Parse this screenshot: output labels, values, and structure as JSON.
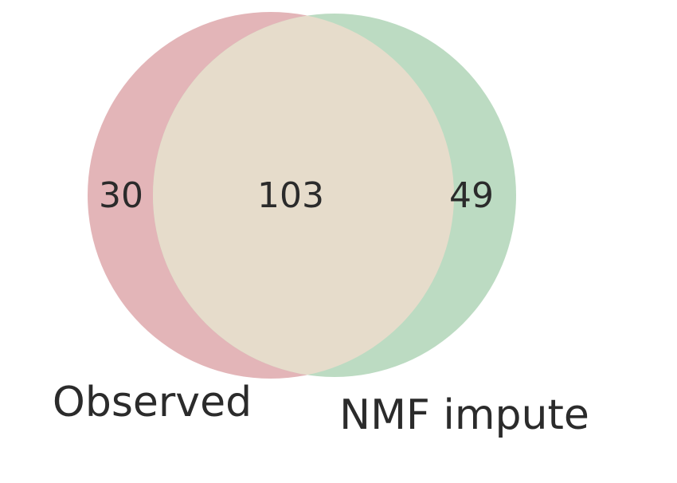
{
  "venn": {
    "sets": [
      {
        "key": "A",
        "label": "Observed",
        "only_count": "30",
        "color": "#e3b5b8"
      },
      {
        "key": "B",
        "label": "NMF impute",
        "only_count": "49",
        "color": "#bcdbc2"
      }
    ],
    "intersection": {
      "count": "103",
      "color": "#e6dccb"
    }
  }
}
